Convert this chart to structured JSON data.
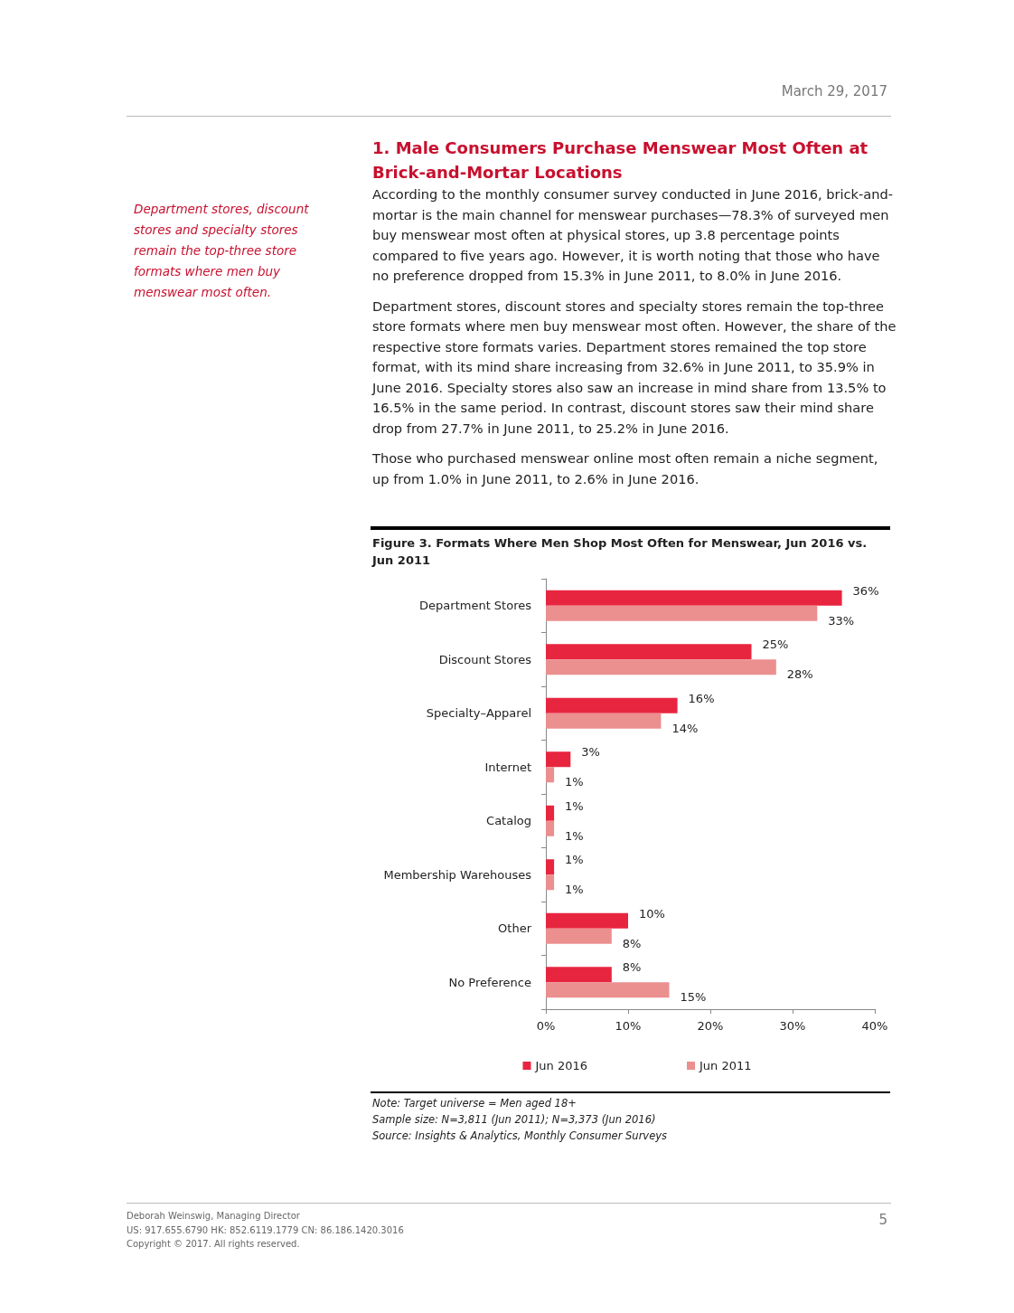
{
  "chart_data": {
    "type": "bar",
    "orientation": "horizontal",
    "title": "Figure 3. Formats Where Men Shop Most Often for Menswear, Jun 2016 vs. Jun 2011",
    "categories": [
      "Department Stores",
      "Discount Stores",
      "Specialty–Apparel",
      "Internet",
      "Catalog",
      "Membership Warehouses",
      "Other",
      "No Preference"
    ],
    "series": [
      {
        "name": "Jun 2016",
        "color": "#e8253f",
        "values": [
          36,
          25,
          16,
          3,
          1,
          1,
          10,
          8
        ]
      },
      {
        "name": "Jun 2011",
        "color": "#eb8f8f",
        "values": [
          33,
          28,
          14,
          1,
          1,
          1,
          8,
          15
        ]
      }
    ],
    "xlim": [
      0,
      40
    ],
    "xticks": [
      {
        "value": 0,
        "label": "0%"
      },
      {
        "value": 10,
        "label": "10%"
      },
      {
        "value": 20,
        "label": "20%"
      },
      {
        "value": 30,
        "label": "30%"
      },
      {
        "value": 40,
        "label": "40%"
      }
    ],
    "value_labels": [
      [
        "36%",
        "25%",
        "16%",
        "3%",
        "1%",
        "1%",
        "10%",
        "8%"
      ],
      [
        "33%",
        "28%",
        "14%",
        "1%",
        "1%",
        "1%",
        "8%",
        "15%"
      ]
    ],
    "grid": false,
    "legend": "bottom",
    "annotations": [
      "March 29, 2017",
      "1. Male Consumers Purchase Menswear Most Often at Brick-and-Mortar Locations",
      "According to the monthly consumer survey conducted in June 2016, brick-and-mortar is the main channel for menswear purchases—78.3% of surveyed men buy menswear most often at physical stores, up 3.8 percentage points compared to five years ago. However, it is worth noting that those who have no preference dropped from 15.3% in June 2011, to 8.0% in June 2016.",
      "Department stores, discount stores and specialty stores remain the top-three store formats where men buy menswear most often. However, the share of the respective store formats varies. Department stores remained the top store format, with its mind share increasing from 32.6% in June 2011, to 35.9% in June 2016. Specialty stores also saw an increase in mind share from 13.5% to 16.5% in the same period. In contrast, discount stores saw their mind share drop from 27.7% in June 2011, to 25.2% in June 2016.",
      "Those who purchased menswear online most often remain a niche segment, up from 1.0% in June 2011, to 2.6% in June 2016.",
      "Department stores, discount stores and specialty stores remain the top-three store formats where men buy menswear most often.",
      "Note: Target universe = Men aged 18+",
      "Sample size: N=3,811 (Jun 2011); N=3,373 (Jun 2016)",
      "Source: Insights & Analytics, Monthly Consumer Surveys",
      "Deborah Weinswig, Managing Director",
      "US: 917.655.6790  HK: 852.6119.1779  CN: 86.186.1420.3016",
      "Copyright © 2017. All rights reserved.",
      "5"
    ]
  }
}
